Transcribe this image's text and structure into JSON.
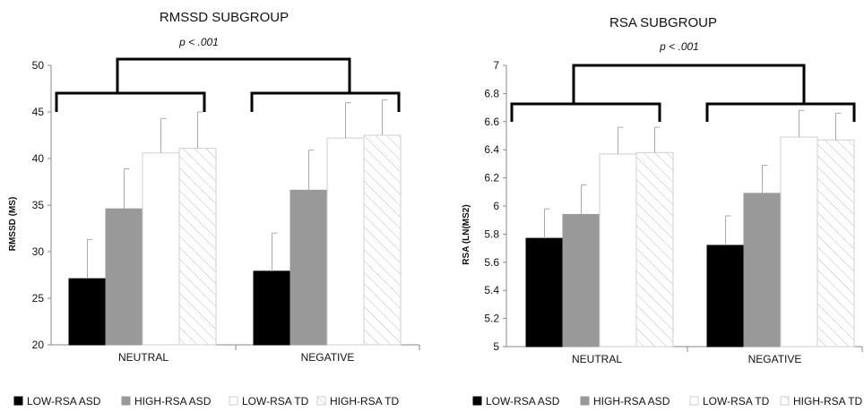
{
  "colors": {
    "low_rsa_asd": "#000000",
    "high_rsa_asd": "#999999",
    "low_rsa_td": "#ffffff",
    "high_rsa_td": "#ffffff",
    "bracket": "#000000",
    "axis": "#888888"
  },
  "chart_data": [
    {
      "type": "bar",
      "title": "RMSSD SUBGROUP",
      "ylabel": "RMSSD (MS)",
      "xlabel": "",
      "categories": [
        "NEUTRAL",
        "NEGATIVE"
      ],
      "ylim": [
        20,
        50
      ],
      "yticks": [
        "20",
        "25",
        "30",
        "35",
        "40",
        "45",
        "50"
      ],
      "ytick_values": [
        20,
        25,
        30,
        35,
        40,
        45,
        50
      ],
      "significance": "p < .001",
      "grid": false,
      "legend_position": "bottom",
      "series": [
        {
          "name": "LOW-RSA ASD",
          "values": [
            27.1,
            27.9
          ],
          "errors": [
            4.2,
            4.1
          ],
          "pattern": "solid-black"
        },
        {
          "name": "HIGH-RSA ASD",
          "values": [
            34.6,
            36.6
          ],
          "errors": [
            4.3,
            4.3
          ],
          "pattern": "solid-gray"
        },
        {
          "name": "LOW-RSA TD",
          "values": [
            40.6,
            42.2
          ],
          "errors": [
            3.7,
            3.8
          ],
          "pattern": "white"
        },
        {
          "name": "HIGH-RSA TD",
          "values": [
            41.1,
            42.5
          ],
          "errors": [
            3.9,
            3.8
          ],
          "pattern": "hatched"
        }
      ]
    },
    {
      "type": "bar",
      "title": "RSA SUBGROUP",
      "ylabel": "RSA (LN(MS2)",
      "xlabel": "",
      "categories": [
        "NEUTRAL",
        "NEGATIVE"
      ],
      "ylim": [
        5,
        7
      ],
      "yticks": [
        "5",
        "5.2",
        "5.4",
        "5.6",
        "5.8",
        "6",
        "6.2",
        "6.4",
        "6.6",
        "6.8",
        "7"
      ],
      "ytick_values": [
        5,
        5.2,
        5.4,
        5.6,
        5.8,
        6,
        6.2,
        6.4,
        6.6,
        6.8,
        7
      ],
      "significance": "p < .001",
      "grid": false,
      "legend_position": "bottom",
      "series": [
        {
          "name": "LOW-RSA ASD",
          "values": [
            5.77,
            5.72
          ],
          "errors": [
            0.21,
            0.21
          ],
          "pattern": "solid-black"
        },
        {
          "name": "HIGH-RSA ASD",
          "values": [
            5.94,
            6.09
          ],
          "errors": [
            0.21,
            0.2
          ],
          "pattern": "solid-gray"
        },
        {
          "name": "LOW-RSA TD",
          "values": [
            6.37,
            6.49
          ],
          "errors": [
            0.19,
            0.19
          ],
          "pattern": "white"
        },
        {
          "name": "HIGH-RSA TD",
          "values": [
            6.38,
            6.47
          ],
          "errors": [
            0.18,
            0.19
          ],
          "pattern": "hatched"
        }
      ]
    }
  ]
}
